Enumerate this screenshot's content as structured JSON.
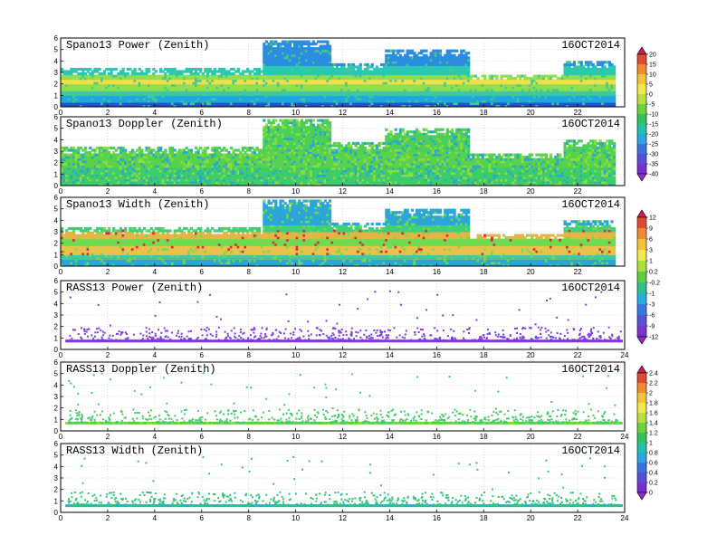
{
  "chart_data": [
    {
      "type": "heatmap",
      "title": "Spano13 Power (Zenith)",
      "date": "16OCT2014",
      "xlim": [
        0,
        24
      ],
      "ylim": [
        0,
        6
      ],
      "x_ticks": [
        0,
        2,
        4,
        6,
        8,
        10,
        12,
        14,
        16,
        18,
        20,
        22
      ],
      "y_ticks": [
        0,
        1,
        2,
        3,
        4,
        5,
        6
      ],
      "colorbar": "power",
      "coverage": [
        {
          "from": 0,
          "to": 8.6,
          "top": 3.4
        },
        {
          "from": 8.6,
          "to": 11.4,
          "top": 5.8
        },
        {
          "from": 11.4,
          "to": 13.8,
          "top": 3.8
        },
        {
          "from": 13.8,
          "to": 17.4,
          "top": 5.0
        },
        {
          "from": 17.4,
          "to": 21.4,
          "top": 2.8
        },
        {
          "from": 21.4,
          "to": 23.6,
          "top": 4.0
        }
      ],
      "profile": [
        {
          "z": 0.0,
          "color": "#2255cc"
        },
        {
          "z": 0.4,
          "color": "#1ea7e0"
        },
        {
          "z": 0.9,
          "color": "#3fc8a6"
        },
        {
          "z": 1.3,
          "color": "#8ee050"
        },
        {
          "z": 1.8,
          "color": "#f2e04a"
        },
        {
          "z": 2.3,
          "color": "#8ee050"
        },
        {
          "z": 2.8,
          "color": "#28c9b4"
        },
        {
          "z": 3.5,
          "color": "#2b8de0"
        },
        {
          "z": 5.8,
          "color": "#3f64d9"
        }
      ]
    },
    {
      "type": "heatmap",
      "title": "Spano13 Doppler (Zenith)",
      "date": "16OCT2014",
      "xlim": [
        0,
        24
      ],
      "ylim": [
        0,
        6
      ],
      "x_ticks": [
        0,
        2,
        4,
        6,
        8,
        10,
        12,
        14,
        16,
        18,
        20,
        22
      ],
      "y_ticks": [
        0,
        1,
        2,
        3,
        4,
        5,
        6
      ],
      "colorbar": "power",
      "coverage": [
        {
          "from": 0,
          "to": 8.6,
          "top": 3.4
        },
        {
          "from": 8.6,
          "to": 11.4,
          "top": 5.8
        },
        {
          "from": 11.4,
          "to": 13.8,
          "top": 3.8
        },
        {
          "from": 13.8,
          "to": 17.4,
          "top": 5.0
        },
        {
          "from": 17.4,
          "to": 21.4,
          "top": 2.8
        },
        {
          "from": 21.4,
          "to": 23.6,
          "top": 4.0
        }
      ],
      "profile": [
        {
          "z": 0.0,
          "color": "#3ccc6a"
        },
        {
          "z": 1.5,
          "color": "#58d24a"
        },
        {
          "z": 3.0,
          "color": "#4ccf58"
        },
        {
          "z": 5.8,
          "color": "#40c86a"
        }
      ]
    },
    {
      "type": "heatmap",
      "title": "Spano13 Width (Zenith)",
      "date": "16OCT2014",
      "xlim": [
        0,
        24
      ],
      "ylim": [
        0,
        6
      ],
      "x_ticks": [
        0,
        2,
        4,
        6,
        8,
        10,
        12,
        14,
        16,
        18,
        20,
        22
      ],
      "y_ticks": [
        0,
        1,
        2,
        3,
        4,
        5,
        6
      ],
      "colorbar": "width",
      "coverage": [
        {
          "from": 0,
          "to": 8.6,
          "top": 3.4
        },
        {
          "from": 8.6,
          "to": 11.4,
          "top": 5.8
        },
        {
          "from": 11.4,
          "to": 13.8,
          "top": 3.8
        },
        {
          "from": 13.8,
          "to": 17.4,
          "top": 5.0
        },
        {
          "from": 17.4,
          "to": 21.4,
          "top": 2.8
        },
        {
          "from": 21.4,
          "to": 23.6,
          "top": 4.0
        }
      ],
      "profile": [
        {
          "z": 0.0,
          "color": "#2aa6d8"
        },
        {
          "z": 0.6,
          "color": "#3fc8a6"
        },
        {
          "z": 1.0,
          "color": "#e8c24a"
        },
        {
          "z": 1.6,
          "color": "#6edc4e"
        },
        {
          "z": 2.4,
          "color": "#e6b444"
        },
        {
          "z": 3.0,
          "color": "#3fcf7a"
        },
        {
          "z": 3.6,
          "color": "#2aa6d8"
        },
        {
          "z": 5.8,
          "color": "#2b8de0"
        }
      ]
    },
    {
      "type": "scatter",
      "title": "RASS13 Power (Zenith)",
      "date": "16OCT2014",
      "xlim": [
        0,
        24
      ],
      "ylim": [
        0,
        6
      ],
      "x_ticks": [
        0,
        2,
        4,
        6,
        8,
        10,
        12,
        14,
        16,
        18,
        20,
        22,
        24
      ],
      "y_ticks": [
        0,
        1,
        2,
        3,
        4,
        5,
        6
      ],
      "colorbar": "rass_power",
      "band": {
        "y": 0.75,
        "color": "#8a2be2"
      },
      "points_color": "#7a3ce0"
    },
    {
      "type": "scatter",
      "title": "RASS13 Doppler (Zenith)",
      "date": "16OCT2014",
      "xlim": [
        0,
        24
      ],
      "ylim": [
        0,
        6
      ],
      "x_ticks": [
        0,
        2,
        4,
        6,
        8,
        10,
        12,
        14,
        16,
        18,
        20,
        22,
        24
      ],
      "y_ticks": [
        0,
        1,
        2,
        3,
        4,
        5,
        6
      ],
      "colorbar": "rass_doppler",
      "band": {
        "y": 0.7,
        "color": "#7fdc3e"
      },
      "points_color": "#44cc66"
    },
    {
      "type": "scatter",
      "title": "RASS13 Width (Zenith)",
      "date": "16OCT2014",
      "xlim": [
        0,
        24
      ],
      "ylim": [
        0,
        6
      ],
      "x_ticks": [
        0,
        2,
        4,
        6,
        8,
        10,
        12,
        14,
        16,
        18,
        20,
        22,
        24
      ],
      "y_ticks": [
        0,
        1,
        2,
        3,
        4,
        5,
        6
      ],
      "colorbar": "rass_doppler",
      "band": {
        "y": 0.6,
        "color": "#1eaed8"
      },
      "points_color": "#33c47a"
    }
  ],
  "colorbars": {
    "power": {
      "labels": [
        "20",
        "15",
        "10",
        "5",
        "0",
        "-5",
        "-10",
        "-15",
        "-20",
        "-25",
        "-30",
        "-35",
        "-40"
      ],
      "colors": [
        "#d0204a",
        "#e04a34",
        "#ee8a30",
        "#f4c23a",
        "#f2e84a",
        "#b6e040",
        "#6ed03c",
        "#38c060",
        "#28c0a8",
        "#2aa6e0",
        "#3a74dc",
        "#5a4ed8",
        "#7a30d0",
        "#9a28c8"
      ]
    },
    "width": {
      "labels": [
        "12",
        "9",
        "6",
        "3",
        "1",
        "0.2",
        "-0.2",
        "-1",
        "-3",
        "-6",
        "-9",
        "-12"
      ],
      "colors": [
        "#d0204a",
        "#e04a34",
        "#ee8a30",
        "#f4c23a",
        "#f2e84a",
        "#a8e040",
        "#5ccc44",
        "#30c08a",
        "#28aedc",
        "#3a7ade",
        "#5a52d8",
        "#7a34d0",
        "#9a28c8"
      ]
    },
    "rass_doppler": {
      "labels": [
        "2.4",
        "2.2",
        "2",
        "1.8",
        "1.6",
        "1.4",
        "1.2",
        "1",
        "0.8",
        "0.6",
        "0.4",
        "0.2",
        "0"
      ],
      "colors": [
        "#d0204a",
        "#e04a34",
        "#ee8a30",
        "#f4c23a",
        "#f2e84a",
        "#b6e040",
        "#6ed03c",
        "#38c060",
        "#28c0a8",
        "#2aa6e0",
        "#3a74dc",
        "#5a4ed8",
        "#7a30d0",
        "#9a28c8"
      ]
    }
  }
}
